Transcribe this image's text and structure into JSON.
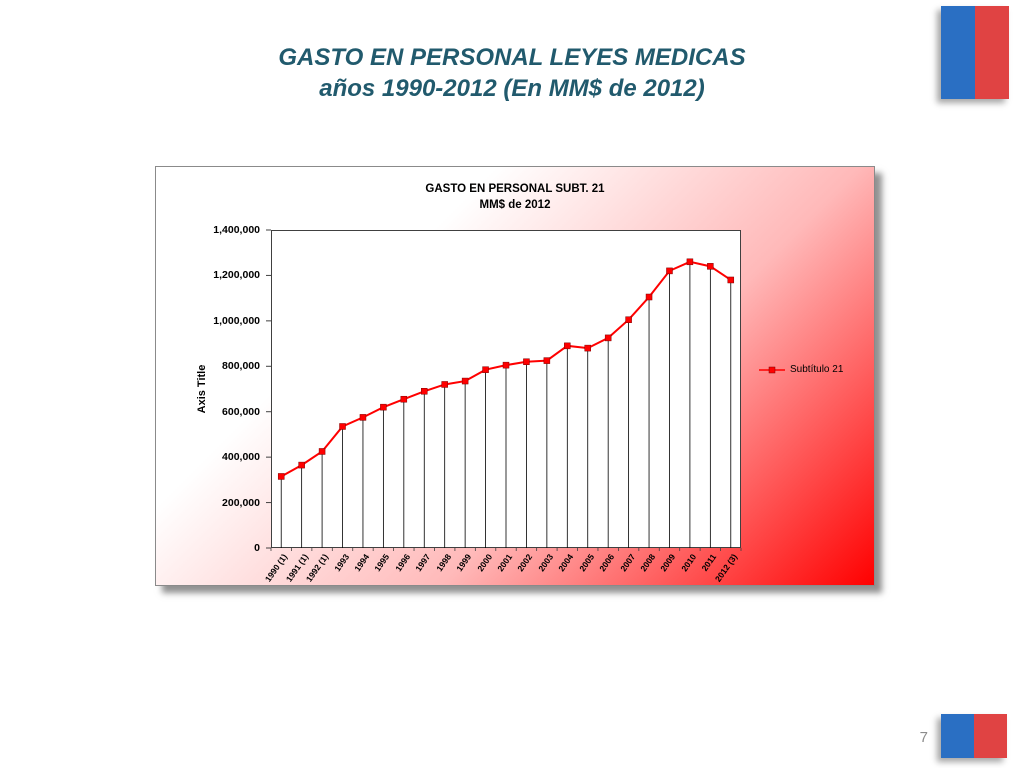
{
  "slide": {
    "title_line1": "GASTO EN PERSONAL LEYES MEDICAS",
    "title_line2": "años 1990-2012 (En MM$ de 2012)",
    "page_number": "7"
  },
  "colors": {
    "title_text": "#215a6d",
    "flag_blue": "#2a6fc3",
    "flag_red": "#e04343",
    "series_red": "#ff0000"
  },
  "chart_data": {
    "type": "line",
    "title": "GASTO EN PERSONAL SUBT. 21",
    "subtitle": "MM$ de 2012",
    "ylabel": "Axis Title",
    "xlabel": "",
    "ylim": [
      0,
      1400000
    ],
    "ytick_values": [
      0,
      200000,
      400000,
      600000,
      800000,
      1000000,
      1200000,
      1400000
    ],
    "ytick_labels": [
      "0",
      "200,000",
      "400,000",
      "600,000",
      "800,000",
      "1,000,000",
      "1,200,000",
      "1,400,000"
    ],
    "categories": [
      "1990 (1)",
      "1991 (1)",
      "1992 (1)",
      "1993",
      "1994",
      "1995",
      "1996",
      "1997",
      "1998",
      "1999",
      "2000",
      "2001",
      "2002",
      "2003",
      "2004",
      "2005",
      "2006",
      "2007",
      "2008",
      "2009",
      "2010",
      "2011",
      "2012 (3)"
    ],
    "series": [
      {
        "name": "Subtítulo 21",
        "color": "#ff0000",
        "marker": "square",
        "values": [
          315000,
          365000,
          425000,
          535000,
          575000,
          620000,
          655000,
          690000,
          720000,
          735000,
          785000,
          805000,
          820000,
          825000,
          890000,
          880000,
          925000,
          1005000,
          1105000,
          1220000,
          1260000,
          1240000,
          1180000
        ]
      }
    ],
    "legend_position": "right",
    "drop_lines": true,
    "grid": false
  }
}
